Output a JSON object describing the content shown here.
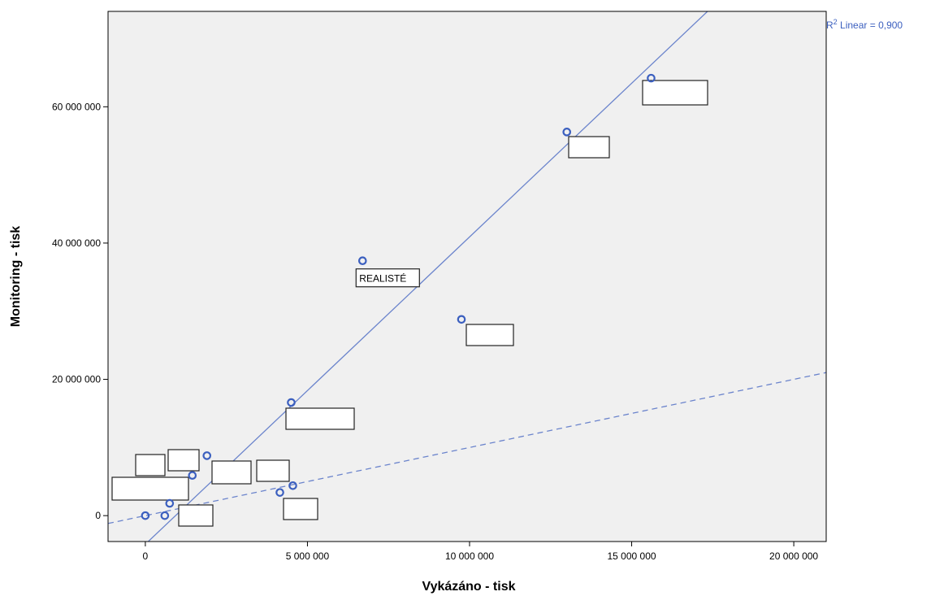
{
  "chart_data": {
    "type": "scatter",
    "title": "",
    "xlabel": "Vykázáno - tisk",
    "ylabel": "Monitoring - tisk",
    "xlim": [
      -1150000,
      21000000
    ],
    "ylim": [
      -3800000,
      74000000
    ],
    "x_ticks": [
      0,
      5000000,
      10000000,
      15000000,
      20000000
    ],
    "x_tick_labels": [
      "0",
      "5 000 000",
      "10 000 000",
      "15 000 000",
      "20 000 000"
    ],
    "y_ticks": [
      0,
      20000000,
      40000000,
      60000000
    ],
    "y_tick_labels": [
      "0",
      "20 000 000",
      "40 000 000",
      "60 000 000"
    ],
    "grid": false,
    "background_color": "#f0f0f0",
    "marker_color": "#3b5fbf",
    "line_color": "#6b84cc",
    "fit_line": {
      "slope": 4.51,
      "intercept": -4200000,
      "r2_label": "Linear = 0,900"
    },
    "reference_line": {
      "slope": 1,
      "intercept": 0,
      "style": "dashed"
    },
    "points": [
      {
        "x": 0,
        "y": 0
      },
      {
        "x": 600000,
        "y": 0
      },
      {
        "x": 750000,
        "y": 1800000
      },
      {
        "x": 1450000,
        "y": 5900000
      },
      {
        "x": 1900000,
        "y": 8800000
      },
      {
        "x": 4150000,
        "y": 3400000
      },
      {
        "x": 4550000,
        "y": 4400000
      },
      {
        "x": 4500000,
        "y": 16600000
      },
      {
        "x": 6700000,
        "y": 37400000,
        "label": "REALISTÉ"
      },
      {
        "x": 9750000,
        "y": 28800000
      },
      {
        "x": 13000000,
        "y": 56300000
      },
      {
        "x": 15600000,
        "y": 64200000
      }
    ]
  }
}
